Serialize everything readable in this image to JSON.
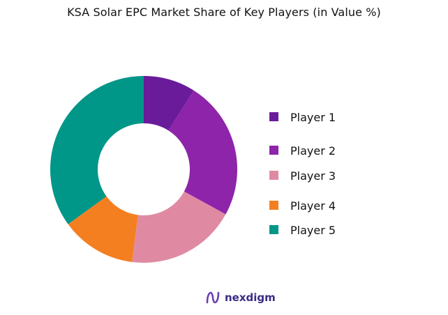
{
  "chart_data": {
    "type": "pie",
    "donut": true,
    "title": "KSA Solar EPC Market Share of Key Players (in Value %)",
    "categories": [
      "Player 1",
      "Player 2",
      "Player 3",
      "Player 4",
      "Player 5"
    ],
    "values": [
      9,
      24,
      19,
      13,
      35
    ],
    "colors": [
      "#6a1b9a",
      "#8e24aa",
      "#df8aa2",
      "#f47f20",
      "#009688"
    ],
    "legend_position": "right"
  },
  "brand": {
    "name": "nexdigm",
    "color": "#3b2a86"
  }
}
